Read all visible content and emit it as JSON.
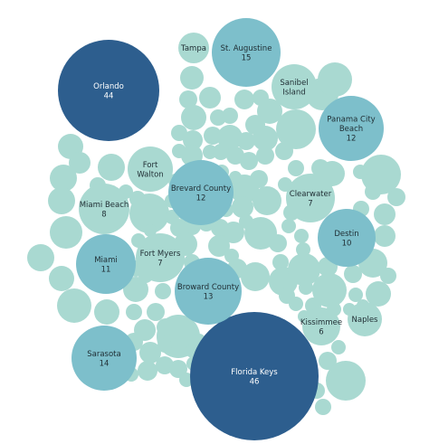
{
  "chart_data": {
    "type": "packed-bubble",
    "colors": {
      "small": "#a9d9d1",
      "mid": "#7dbfcb",
      "large": "#2d5e8e",
      "label_dark": "#1f2d33",
      "label_light": "#ffffff"
    },
    "labeled": [
      {
        "name": "Orlando",
        "value": 44
      },
      {
        "name": "Florida Keys",
        "value": 46
      },
      {
        "name": "St. Augustine",
        "value": 15
      },
      {
        "name": "Sarasota",
        "value": 14
      },
      {
        "name": "Broward County",
        "value": 13
      },
      {
        "name": "Brevard County",
        "value": 12
      },
      {
        "name": "Panama City Beach",
        "value": 12
      },
      {
        "name": "Miami",
        "value": 11
      },
      {
        "name": "Destin",
        "value": 10
      },
      {
        "name": "Miami Beach",
        "value": 8
      },
      {
        "name": "Fort Myers",
        "value": 7
      },
      {
        "name": "Clearwater",
        "value": 7
      },
      {
        "name": "Kissimmee",
        "value": 6
      },
      {
        "name": "Fort Walton",
        "value": null
      },
      {
        "name": "Tampa",
        "value": null
      },
      {
        "name": "Sanibel Island",
        "value": null
      },
      {
        "name": "Naples",
        "value": null
      }
    ],
    "unlabeled_count": 134
  }
}
